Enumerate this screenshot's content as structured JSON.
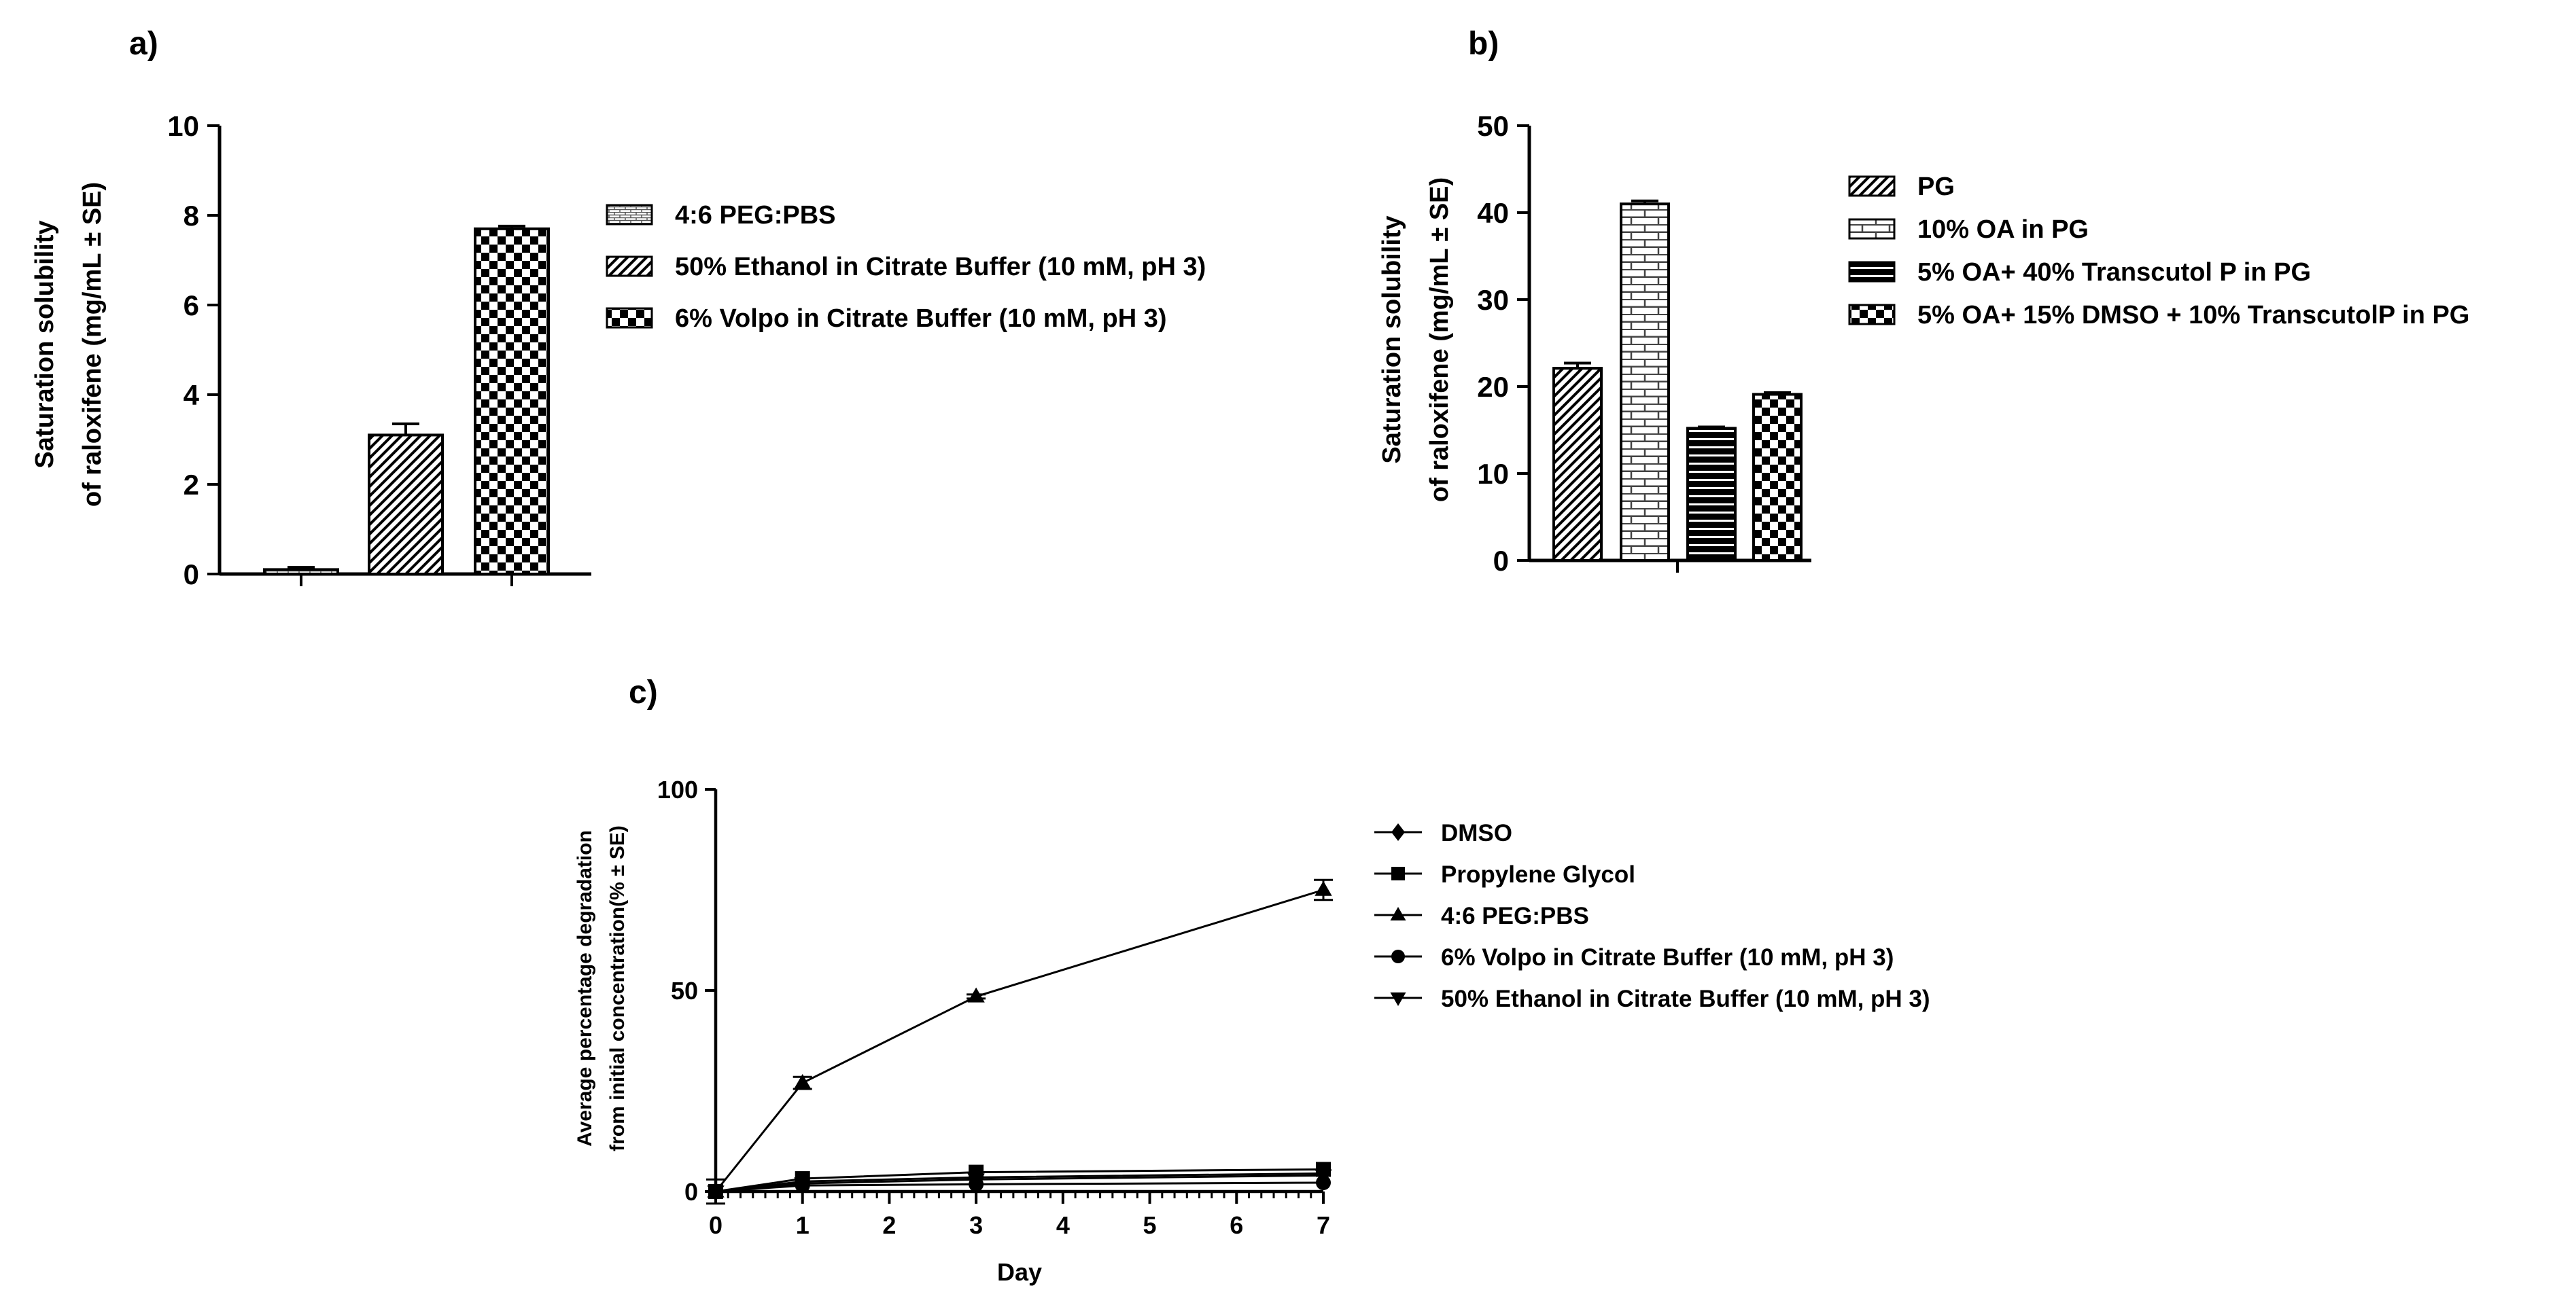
{
  "chart_data": [
    {
      "panel": "a)",
      "type": "bar",
      "categories": [
        "4:6 PEG:PBS",
        "50% Ethanol in Citrate Buffer (10 mM, pH 3)",
        "6% Volpo in Citrate Buffer (10 mM, pH 3)"
      ],
      "values": [
        0.1,
        3.1,
        7.7
      ],
      "errors": [
        0.05,
        0.25,
        0.06
      ],
      "patterns": [
        "brick-fine",
        "diagonal",
        "checker"
      ],
      "ylabel_line1": "Saturation solubility",
      "ylabel_line2": "of raloxifene (mg/mL ± SE)",
      "ylim": [
        0,
        10
      ],
      "yticks": [
        "0",
        "2",
        "4",
        "6",
        "8",
        "10"
      ],
      "legend": [
        "4:6 PEG:PBS",
        "50% Ethanol in Citrate Buffer (10 mM, pH 3)",
        "6% Volpo in Citrate Buffer (10 mM, pH 3)"
      ],
      "legend_position": "right"
    },
    {
      "panel": "b)",
      "type": "bar",
      "categories": [
        "PG",
        "10% OA in PG",
        "5% OA+ 40% Transcutol P in PG",
        "5% OA+ 15% DMSO + 10% TranscutolP in PG"
      ],
      "values": [
        22.1,
        41.0,
        15.2,
        19.1
      ],
      "errors": [
        0.6,
        0.35,
        0.15,
        0.2
      ],
      "patterns": [
        "diagonal",
        "brick",
        "hstripe",
        "checker"
      ],
      "ylabel_line1": "Saturation solubility",
      "ylabel_line2": "of raloxifene (mg/mL ± SE)",
      "ylim": [
        0,
        50
      ],
      "yticks": [
        "0",
        "10",
        "20",
        "30",
        "40",
        "50"
      ],
      "legend": [
        "PG",
        "10% OA in PG",
        "5% OA+ 40% Transcutol P in PG",
        "5% OA+ 15% DMSO + 10% TranscutolP in PG"
      ],
      "legend_position": "right"
    },
    {
      "panel": "c)",
      "type": "line",
      "x": [
        0,
        1,
        3,
        7
      ],
      "xlim": [
        0,
        7
      ],
      "xticks": [
        "0",
        "1",
        "2",
        "3",
        "4",
        "5",
        "6",
        "7"
      ],
      "xlabel": "Day",
      "ylabel_line1": "Average percentage degradation",
      "ylabel_line2": "from initial concentration(% ± SE)",
      "ylim": [
        0,
        100
      ],
      "yticks": [
        "0",
        "50",
        "100"
      ],
      "series": [
        {
          "name": "DMSO",
          "marker": "diamond",
          "values": [
            0,
            2.5,
            3.5,
            4.5
          ],
          "errors": [
            0,
            0,
            0,
            0
          ]
        },
        {
          "name": "Propylene Glycol",
          "marker": "square",
          "values": [
            0,
            3.2,
            4.8,
            5.5
          ],
          "errors": [
            0,
            0,
            0,
            0
          ]
        },
        {
          "name": "4:6 PEG:PBS",
          "marker": "triangle-up",
          "values": [
            0,
            27,
            48.5,
            75
          ],
          "errors": [
            3,
            1.5,
            0.5,
            2.5
          ]
        },
        {
          "name": "6% Volpo in Citrate Buffer (10 mM, pH 3)",
          "marker": "circle",
          "values": [
            0,
            1.5,
            1.8,
            2.2
          ],
          "errors": [
            0,
            0,
            0,
            0
          ]
        },
        {
          "name": "50% Ethanol in Citrate Buffer (10 mM, pH 3)",
          "marker": "triangle-down",
          "values": [
            0,
            2,
            3,
            4
          ],
          "errors": [
            0,
            0,
            0,
            0
          ]
        }
      ],
      "legend_position": "right"
    }
  ]
}
